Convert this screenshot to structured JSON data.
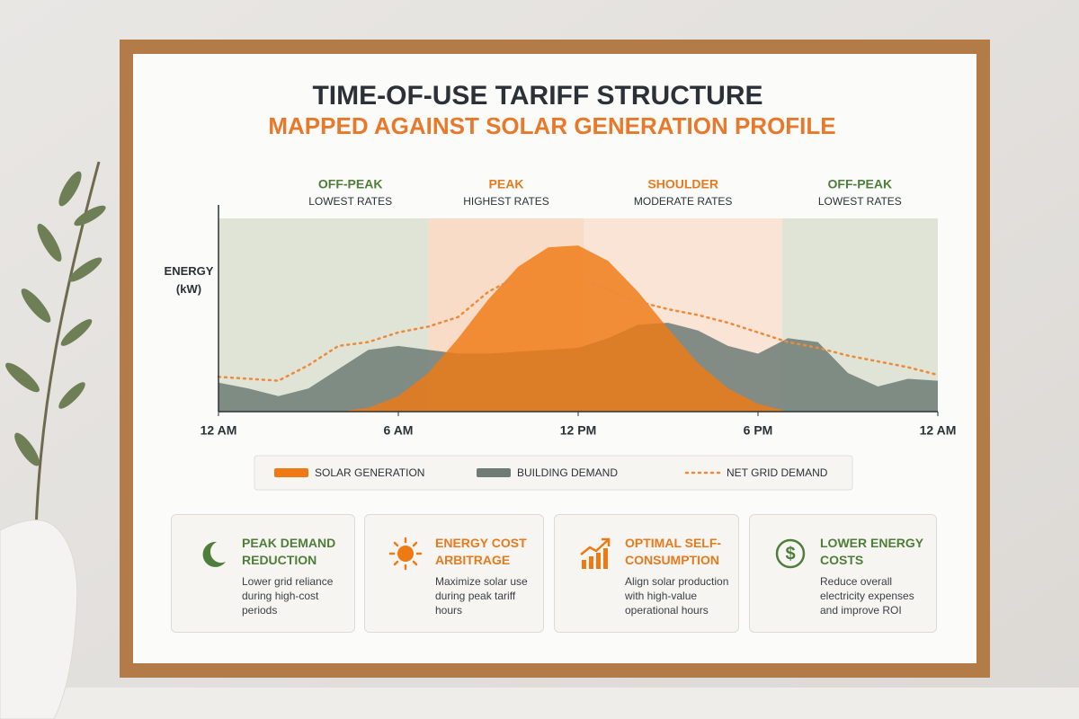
{
  "chart_data": {
    "type": "area",
    "title": "TIME-OF-USE TARIFF STRUCTURE",
    "subtitle": "MAPPED AGAINST SOLAR GENERATION PROFILE",
    "y_label": "ENERGY (kW)",
    "xlim": [
      0,
      24
    ],
    "ylim": [
      0,
      10
    ],
    "xticks": [
      {
        "value": 0,
        "label": "12 AM"
      },
      {
        "value": 6,
        "label": "6 AM"
      },
      {
        "value": 12,
        "label": "12 PM"
      },
      {
        "value": 18,
        "label": "6 PM"
      },
      {
        "value": 24,
        "label": "12 AM"
      }
    ],
    "zones": [
      {
        "label": "OFF-PEAK",
        "sub": "LOWEST RATES",
        "start": 0,
        "end": 7,
        "color": "#dfe4d7",
        "label_color": "#4f7d3a"
      },
      {
        "label": "PEAK",
        "sub": "HIGHEST RATES",
        "start": 7,
        "end": 12.2,
        "color": "#f8dcc7",
        "label_color": "#e57a1f"
      },
      {
        "label": "SHOULDER",
        "sub": "MODERATE RATES",
        "start": 12.2,
        "end": 18.8,
        "color": "#f9e4d5",
        "label_color": "#e57a1f"
      },
      {
        "label": "OFF-PEAK",
        "sub": "LOWEST RATES",
        "start": 18.8,
        "end": 24,
        "color": "#dfe4d7",
        "label_color": "#4f7d3a"
      }
    ],
    "x": [
      0,
      1,
      2,
      3,
      4,
      5,
      6,
      7,
      8,
      9,
      10,
      11,
      12,
      13,
      14,
      15,
      16,
      17,
      18,
      19,
      20,
      21,
      22,
      23,
      24
    ],
    "series": [
      {
        "name": "BUILDING DEMAND",
        "color": "#6f7c76",
        "style": "area",
        "values": [
          1.5,
          1.2,
          0.8,
          1.2,
          2.2,
          3.2,
          3.4,
          3.2,
          3.0,
          3.0,
          3.1,
          3.2,
          3.3,
          3.8,
          4.5,
          4.6,
          4.2,
          3.4,
          3.0,
          3.8,
          3.6,
          2.0,
          1.3,
          1.7,
          1.6
        ]
      },
      {
        "name": "SOLAR GENERATION",
        "color": "#ef7a14",
        "style": "area",
        "values": [
          0,
          0,
          0,
          0,
          0,
          0.2,
          0.8,
          2.0,
          3.8,
          5.8,
          7.5,
          8.5,
          8.6,
          7.8,
          6.2,
          4.3,
          2.5,
          1.2,
          0.4,
          0,
          0,
          0,
          0,
          0,
          0
        ]
      },
      {
        "name": "NET GRID DEMAND",
        "color": "#ef8a3a",
        "style": "dotted",
        "values": [
          1.8,
          1.7,
          1.6,
          2.4,
          3.4,
          3.6,
          4.1,
          4.4,
          4.9,
          6.2,
          7.0,
          7.2,
          7.0,
          6.3,
          5.7,
          5.3,
          5.0,
          4.6,
          4.1,
          3.6,
          3.3,
          2.9,
          2.6,
          2.3,
          1.9
        ]
      }
    ]
  },
  "cards": [
    {
      "title": "PEAK DEMAND REDUCTION",
      "text": "Lower grid reliance during high-cost periods",
      "color": "#4f7d3a"
    },
    {
      "title": "ENERGY COST ARBITRAGE",
      "text": "Maximize solar use during peak tariff hours",
      "color": "#e57a1f"
    },
    {
      "title": "OPTIMAL SELF-CONSUMPTION",
      "text": "Align solar production with high-value operational hours",
      "color": "#e57a1f"
    },
    {
      "title": "LOWER ENERGY COSTS",
      "text": "Reduce overall electricity expenses and improve ROI",
      "color": "#4f7d3a"
    }
  ]
}
